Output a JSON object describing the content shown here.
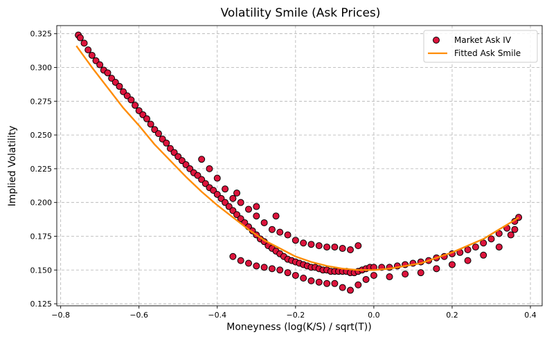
{
  "chart_data": {
    "type": "scatter",
    "title": "Volatility Smile (Ask Prices)",
    "xlabel": "Moneyness (log(K/S) / sqrt(T))",
    "ylabel": "Implied Volatility",
    "xlim": [
      -0.81,
      0.43
    ],
    "ylim": [
      0.1235,
      0.331
    ],
    "xticks": [
      -0.8,
      -0.6,
      -0.4,
      -0.2,
      0.0,
      0.2,
      0.4
    ],
    "xtick_labels": [
      "−0.8",
      "−0.6",
      "−0.4",
      "−0.2",
      "0.0",
      "0.2",
      "0.4"
    ],
    "yticks": [
      0.125,
      0.15,
      0.175,
      0.2,
      0.225,
      0.25,
      0.275,
      0.3,
      0.325
    ],
    "ytick_labels": [
      "0.125",
      "0.150",
      "0.175",
      "0.200",
      "0.225",
      "0.250",
      "0.275",
      "0.300",
      "0.325"
    ],
    "grid": true,
    "legend_position": "top-right",
    "series": [
      {
        "name": "Market Ask IV",
        "kind": "scatter",
        "color": "#dc143c",
        "edge_color": "#000000",
        "points": [
          [
            -0.755,
            0.324
          ],
          [
            -0.75,
            0.322
          ],
          [
            -0.74,
            0.318
          ],
          [
            -0.73,
            0.313
          ],
          [
            -0.72,
            0.309
          ],
          [
            -0.71,
            0.305
          ],
          [
            -0.7,
            0.302
          ],
          [
            -0.69,
            0.298
          ],
          [
            -0.68,
            0.296
          ],
          [
            -0.67,
            0.292
          ],
          [
            -0.66,
            0.289
          ],
          [
            -0.65,
            0.286
          ],
          [
            -0.64,
            0.282
          ],
          [
            -0.63,
            0.279
          ],
          [
            -0.62,
            0.276
          ],
          [
            -0.61,
            0.272
          ],
          [
            -0.6,
            0.268
          ],
          [
            -0.59,
            0.265
          ],
          [
            -0.58,
            0.262
          ],
          [
            -0.57,
            0.258
          ],
          [
            -0.56,
            0.254
          ],
          [
            -0.55,
            0.251
          ],
          [
            -0.54,
            0.247
          ],
          [
            -0.53,
            0.244
          ],
          [
            -0.52,
            0.24
          ],
          [
            -0.51,
            0.237
          ],
          [
            -0.5,
            0.234
          ],
          [
            -0.49,
            0.231
          ],
          [
            -0.48,
            0.228
          ],
          [
            -0.47,
            0.225
          ],
          [
            -0.46,
            0.222
          ],
          [
            -0.45,
            0.22
          ],
          [
            -0.44,
            0.217
          ],
          [
            -0.43,
            0.214
          ],
          [
            -0.42,
            0.211
          ],
          [
            -0.41,
            0.209
          ],
          [
            -0.4,
            0.206
          ],
          [
            -0.39,
            0.203
          ],
          [
            -0.38,
            0.2
          ],
          [
            -0.37,
            0.197
          ],
          [
            -0.36,
            0.194
          ],
          [
            -0.35,
            0.191
          ],
          [
            -0.34,
            0.188
          ],
          [
            -0.33,
            0.185
          ],
          [
            -0.32,
            0.182
          ],
          [
            -0.31,
            0.179
          ],
          [
            -0.3,
            0.176
          ],
          [
            -0.29,
            0.173
          ],
          [
            -0.28,
            0.171
          ],
          [
            -0.27,
            0.168
          ],
          [
            -0.26,
            0.166
          ],
          [
            -0.25,
            0.164
          ],
          [
            -0.24,
            0.162
          ],
          [
            -0.23,
            0.16
          ],
          [
            -0.22,
            0.158
          ],
          [
            -0.21,
            0.157
          ],
          [
            -0.2,
            0.156
          ],
          [
            -0.19,
            0.155
          ],
          [
            -0.18,
            0.154
          ],
          [
            -0.17,
            0.153
          ],
          [
            -0.16,
            0.152
          ],
          [
            -0.15,
            0.152
          ],
          [
            -0.14,
            0.151
          ],
          [
            -0.13,
            0.15
          ],
          [
            -0.12,
            0.15
          ],
          [
            -0.11,
            0.149
          ],
          [
            -0.1,
            0.149
          ],
          [
            -0.09,
            0.149
          ],
          [
            -0.08,
            0.149
          ],
          [
            -0.07,
            0.149
          ],
          [
            -0.06,
            0.148
          ],
          [
            -0.05,
            0.148
          ],
          [
            -0.04,
            0.149
          ],
          [
            -0.03,
            0.15
          ],
          [
            -0.02,
            0.151
          ],
          [
            -0.01,
            0.152
          ],
          [
            0.0,
            0.152
          ],
          [
            0.02,
            0.152
          ],
          [
            0.04,
            0.152
          ],
          [
            0.06,
            0.153
          ],
          [
            0.08,
            0.154
          ],
          [
            0.1,
            0.155
          ],
          [
            0.12,
            0.156
          ],
          [
            0.14,
            0.157
          ],
          [
            0.16,
            0.159
          ],
          [
            0.18,
            0.16
          ],
          [
            0.2,
            0.162
          ],
          [
            0.22,
            0.163
          ],
          [
            0.24,
            0.165
          ],
          [
            0.26,
            0.167
          ],
          [
            0.28,
            0.17
          ],
          [
            0.3,
            0.173
          ],
          [
            0.32,
            0.177
          ],
          [
            0.34,
            0.181
          ],
          [
            0.36,
            0.186
          ],
          [
            0.37,
            0.189
          ],
          [
            -0.44,
            0.232
          ],
          [
            -0.42,
            0.225
          ],
          [
            -0.4,
            0.218
          ],
          [
            -0.38,
            0.21
          ],
          [
            -0.36,
            0.203
          ],
          [
            -0.34,
            0.2
          ],
          [
            -0.32,
            0.195
          ],
          [
            -0.3,
            0.19
          ],
          [
            -0.28,
            0.185
          ],
          [
            -0.26,
            0.18
          ],
          [
            -0.24,
            0.178
          ],
          [
            -0.22,
            0.176
          ],
          [
            -0.2,
            0.172
          ],
          [
            -0.18,
            0.17
          ],
          [
            -0.16,
            0.169
          ],
          [
            -0.14,
            0.168
          ],
          [
            -0.12,
            0.167
          ],
          [
            -0.1,
            0.167
          ],
          [
            -0.08,
            0.166
          ],
          [
            -0.06,
            0.165
          ],
          [
            -0.04,
            0.168
          ],
          [
            -0.35,
            0.207
          ],
          [
            -0.3,
            0.197
          ],
          [
            -0.25,
            0.19
          ],
          [
            -0.36,
            0.16
          ],
          [
            -0.34,
            0.157
          ],
          [
            -0.32,
            0.155
          ],
          [
            -0.3,
            0.153
          ],
          [
            -0.28,
            0.152
          ],
          [
            -0.26,
            0.151
          ],
          [
            -0.24,
            0.15
          ],
          [
            -0.22,
            0.148
          ],
          [
            -0.2,
            0.146
          ],
          [
            -0.18,
            0.144
          ],
          [
            -0.16,
            0.142
          ],
          [
            -0.14,
            0.141
          ],
          [
            -0.12,
            0.14
          ],
          [
            -0.1,
            0.14
          ],
          [
            -0.08,
            0.137
          ],
          [
            -0.06,
            0.135
          ],
          [
            -0.04,
            0.139
          ],
          [
            -0.02,
            0.143
          ],
          [
            0.0,
            0.146
          ],
          [
            0.04,
            0.145
          ],
          [
            0.08,
            0.147
          ],
          [
            0.12,
            0.148
          ],
          [
            0.16,
            0.151
          ],
          [
            0.2,
            0.154
          ],
          [
            0.24,
            0.157
          ],
          [
            0.28,
            0.161
          ],
          [
            0.32,
            0.167
          ],
          [
            0.35,
            0.176
          ],
          [
            0.36,
            0.18
          ]
        ]
      },
      {
        "name": "Fitted Ask Smile",
        "kind": "line",
        "color": "#ff8c00",
        "points": [
          [
            -0.76,
            0.316
          ],
          [
            -0.72,
            0.3
          ],
          [
            -0.68,
            0.285
          ],
          [
            -0.64,
            0.27
          ],
          [
            -0.6,
            0.257
          ],
          [
            -0.56,
            0.243
          ],
          [
            -0.52,
            0.231
          ],
          [
            -0.48,
            0.219
          ],
          [
            -0.44,
            0.208
          ],
          [
            -0.4,
            0.198
          ],
          [
            -0.36,
            0.189
          ],
          [
            -0.32,
            0.18
          ],
          [
            -0.28,
            0.172
          ],
          [
            -0.24,
            0.166
          ],
          [
            -0.2,
            0.16
          ],
          [
            -0.16,
            0.156
          ],
          [
            -0.12,
            0.153
          ],
          [
            -0.08,
            0.151
          ],
          [
            -0.04,
            0.15
          ],
          [
            0.0,
            0.15
          ],
          [
            0.04,
            0.151
          ],
          [
            0.08,
            0.153
          ],
          [
            0.12,
            0.155
          ],
          [
            0.16,
            0.159
          ],
          [
            0.2,
            0.163
          ],
          [
            0.24,
            0.168
          ],
          [
            0.28,
            0.173
          ],
          [
            0.32,
            0.18
          ],
          [
            0.36,
            0.187
          ],
          [
            0.37,
            0.189
          ]
        ]
      }
    ]
  }
}
